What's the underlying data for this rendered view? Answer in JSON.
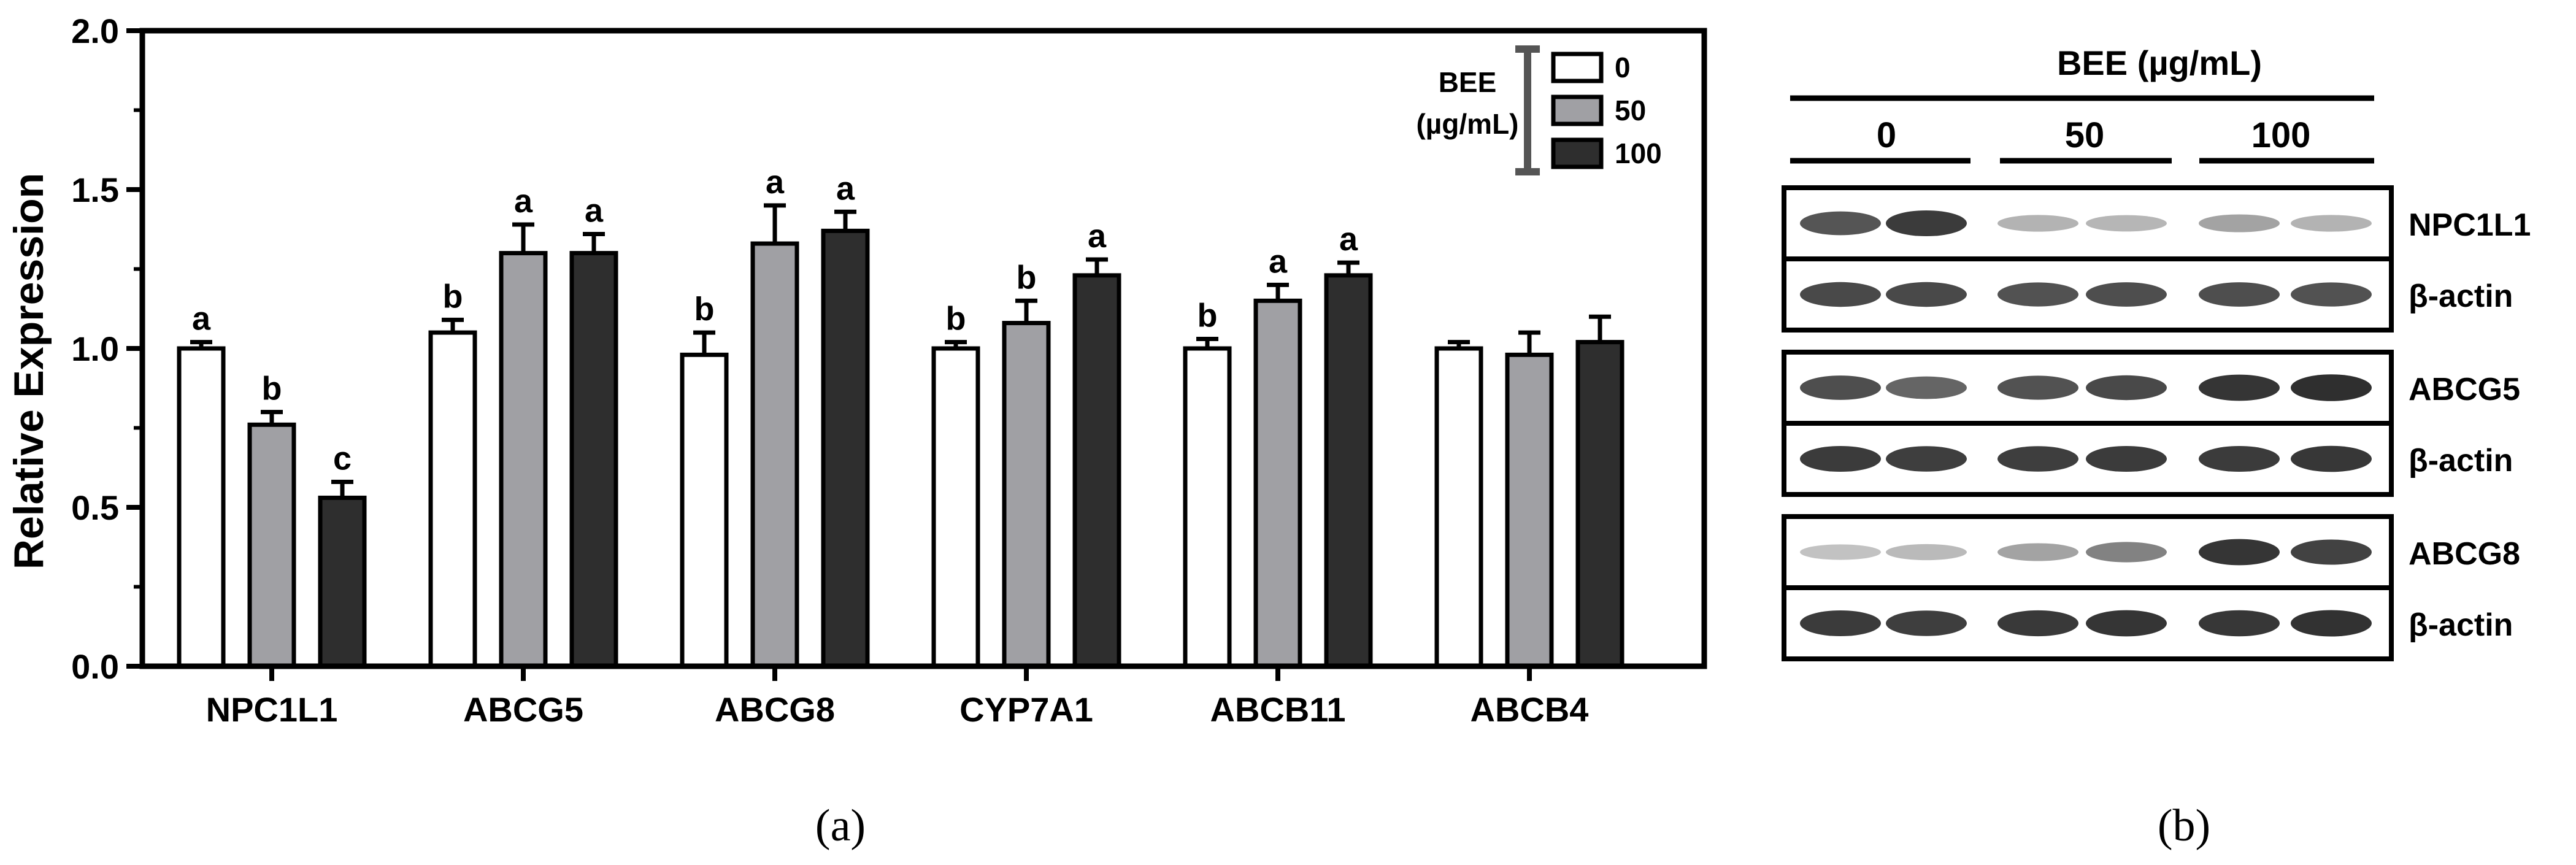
{
  "chart_data": {
    "type": "bar",
    "title": "",
    "xlabel": "",
    "ylabel": "Relative Expression",
    "ylim": [
      0,
      2.0
    ],
    "yticks": [
      "0.0",
      "0.5",
      "1.0",
      "1.5",
      "2.0"
    ],
    "categories": [
      "NPC1L1",
      "ABCG5",
      "ABCG8",
      "CYP7A1",
      "ABCB11",
      "ABCB4"
    ],
    "series": [
      {
        "name": "0",
        "color": "#ffffff",
        "values": [
          1.0,
          1.05,
          0.98,
          1.0,
          1.0,
          1.0
        ],
        "errors": [
          0.02,
          0.04,
          0.07,
          0.02,
          0.03,
          0.02
        ],
        "letters": [
          "a",
          "b",
          "b",
          "b",
          "b",
          ""
        ]
      },
      {
        "name": "50",
        "color": "#a0a0a4",
        "values": [
          0.76,
          1.3,
          1.33,
          1.08,
          1.15,
          0.98
        ],
        "errors": [
          0.04,
          0.09,
          0.12,
          0.07,
          0.05,
          0.07
        ],
        "letters": [
          "b",
          "a",
          "a",
          "b",
          "a",
          ""
        ]
      },
      {
        "name": "100",
        "color": "#2e2e2e",
        "values": [
          0.53,
          1.3,
          1.37,
          1.23,
          1.23,
          1.02
        ],
        "errors": [
          0.05,
          0.06,
          0.06,
          0.05,
          0.04,
          0.08
        ],
        "letters": [
          "c",
          "a",
          "a",
          "a",
          "a",
          ""
        ]
      }
    ],
    "legend": {
      "placement": "top-right",
      "title_line1": "BEE",
      "title_line2": "(µg/mL)",
      "entries": [
        "0",
        "50",
        "100"
      ]
    }
  },
  "blot": {
    "header": "BEE (µg/mL)",
    "doses": [
      "0",
      "50",
      "100"
    ],
    "panels": [
      {
        "rows": [
          {
            "label": "NPC1L1",
            "intensities": [
              0.78,
              0.92,
              0.3,
              0.28,
              0.38,
              0.3
            ]
          },
          {
            "label": "β-actin",
            "intensities": [
              0.85,
              0.85,
              0.8,
              0.82,
              0.82,
              0.8
            ]
          }
        ]
      },
      {
        "rows": [
          {
            "label": "ABCG5",
            "intensities": [
              0.82,
              0.7,
              0.8,
              0.85,
              0.95,
              0.98
            ]
          },
          {
            "label": "β-actin",
            "intensities": [
              0.92,
              0.9,
              0.9,
              0.92,
              0.92,
              0.94
            ]
          }
        ]
      },
      {
        "rows": [
          {
            "label": "ABCG8",
            "intensities": [
              0.22,
              0.26,
              0.38,
              0.55,
              0.95,
              0.88
            ]
          },
          {
            "label": "β-actin",
            "intensities": [
              0.92,
              0.9,
              0.93,
              0.95,
              0.94,
              0.96
            ]
          }
        ]
      }
    ]
  },
  "captions": {
    "a": "(a)",
    "b": "(b)"
  }
}
